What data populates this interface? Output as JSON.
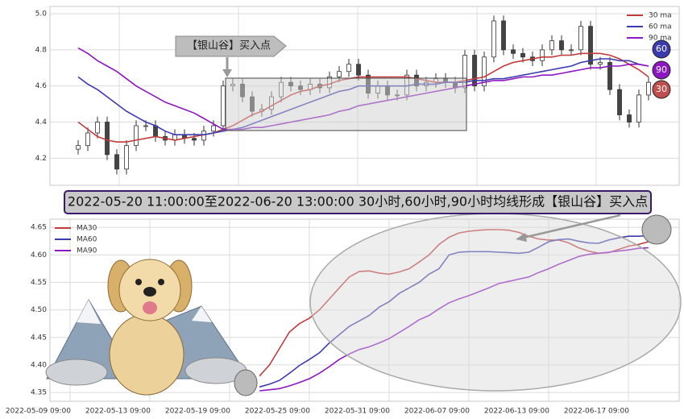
{
  "chart_data": [
    {
      "type": "candlestick",
      "annotations": [
        "【银山谷】买入点",
        "60",
        "90",
        "30"
      ],
      "open": [
        4.25,
        4.27,
        4.34,
        4.4,
        4.22,
        4.14,
        4.27,
        4.38,
        4.38,
        4.32,
        4.3,
        4.33,
        4.31,
        4.3,
        4.35,
        4.38,
        4.6,
        4.61,
        4.54,
        4.46,
        4.47,
        4.54,
        4.62,
        4.6,
        4.58,
        4.61,
        4.59,
        4.65,
        4.68,
        4.72,
        4.66,
        4.56,
        4.6,
        4.55,
        4.55,
        4.66,
        4.6,
        4.62,
        4.64,
        4.62,
        4.59,
        4.77,
        4.6,
        4.76,
        4.96,
        4.8,
        4.78,
        4.76,
        4.74,
        4.8,
        4.85,
        4.8,
        4.8,
        4.93,
        4.72,
        4.73,
        4.58,
        4.44,
        4.4,
        4.55
      ],
      "high": [
        4.3,
        4.37,
        4.43,
        4.43,
        4.25,
        4.3,
        4.41,
        4.41,
        4.41,
        4.35,
        4.36,
        4.36,
        4.34,
        4.38,
        4.41,
        4.63,
        4.64,
        4.64,
        4.57,
        4.5,
        4.57,
        4.65,
        4.65,
        4.63,
        4.64,
        4.64,
        4.68,
        4.71,
        4.75,
        4.75,
        4.69,
        4.63,
        4.63,
        4.58,
        4.69,
        4.69,
        4.65,
        4.67,
        4.67,
        4.65,
        4.8,
        4.8,
        4.79,
        4.99,
        4.99,
        4.83,
        4.81,
        4.79,
        4.83,
        4.88,
        4.88,
        4.83,
        4.96,
        4.96,
        4.76,
        4.76,
        4.61,
        4.47,
        4.58,
        4.65
      ],
      "low": [
        4.22,
        4.24,
        4.31,
        4.19,
        4.11,
        4.11,
        4.24,
        4.35,
        4.29,
        4.27,
        4.27,
        4.28,
        4.27,
        4.27,
        4.32,
        4.35,
        4.57,
        4.51,
        4.43,
        4.43,
        4.44,
        4.51,
        4.57,
        4.55,
        4.55,
        4.56,
        4.56,
        4.62,
        4.65,
        4.63,
        4.53,
        4.53,
        4.52,
        4.52,
        4.52,
        4.57,
        4.57,
        4.59,
        4.59,
        4.56,
        4.56,
        4.57,
        4.57,
        4.73,
        4.77,
        4.75,
        4.73,
        4.71,
        4.71,
        4.77,
        4.77,
        4.77,
        4.77,
        4.69,
        4.69,
        4.55,
        4.41,
        4.37,
        4.37,
        4.52
      ],
      "close": [
        4.27,
        4.34,
        4.4,
        4.22,
        4.14,
        4.27,
        4.38,
        4.38,
        4.32,
        4.3,
        4.33,
        4.31,
        4.3,
        4.35,
        4.38,
        4.6,
        4.61,
        4.54,
        4.46,
        4.47,
        4.54,
        4.62,
        4.6,
        4.58,
        4.61,
        4.59,
        4.65,
        4.68,
        4.72,
        4.66,
        4.56,
        4.6,
        4.55,
        4.55,
        4.66,
        4.6,
        4.62,
        4.64,
        4.62,
        4.59,
        4.77,
        4.6,
        4.76,
        4.96,
        4.8,
        4.78,
        4.76,
        4.74,
        4.8,
        4.85,
        4.8,
        4.8,
        4.93,
        4.72,
        4.73,
        4.58,
        4.44,
        4.4,
        4.55,
        4.62
      ],
      "series": [
        {
          "name": "30 ma",
          "color": "#c23b3b",
          "values": [
            4.4,
            4.36,
            4.32,
            4.3,
            4.29,
            4.29,
            4.3,
            4.31,
            4.32,
            4.31,
            4.3,
            4.31,
            4.32,
            4.33,
            4.34,
            4.36,
            4.38,
            4.41,
            4.44,
            4.46,
            4.49,
            4.52,
            4.55,
            4.57,
            4.58,
            4.6,
            4.61,
            4.63,
            4.64,
            4.65,
            4.65,
            4.65,
            4.65,
            4.65,
            4.65,
            4.64,
            4.63,
            4.62,
            4.62,
            4.62,
            4.63,
            4.64,
            4.65,
            4.68,
            4.71,
            4.73,
            4.74,
            4.75,
            4.76,
            4.76,
            4.77,
            4.77,
            4.78,
            4.78,
            4.78,
            4.77,
            4.75,
            4.72,
            4.69,
            4.65
          ]
        },
        {
          "name": "60 ma",
          "color": "#3b3bad",
          "values": [
            4.65,
            4.61,
            4.58,
            4.54,
            4.5,
            4.46,
            4.43,
            4.4,
            4.38,
            4.35,
            4.33,
            4.33,
            4.33,
            4.33,
            4.34,
            4.35,
            4.36,
            4.37,
            4.39,
            4.41,
            4.43,
            4.45,
            4.47,
            4.49,
            4.51,
            4.53,
            4.55,
            4.57,
            4.58,
            4.6,
            4.6,
            4.6,
            4.6,
            4.6,
            4.6,
            4.61,
            4.61,
            4.61,
            4.62,
            4.62,
            4.62,
            4.63,
            4.63,
            4.64,
            4.64,
            4.65,
            4.66,
            4.67,
            4.68,
            4.69,
            4.7,
            4.71,
            4.73,
            4.74,
            4.75,
            4.75,
            4.74,
            4.74,
            4.72,
            4.71
          ]
        },
        {
          "name": "90 ma",
          "color": "#8d17c2",
          "values": [
            4.81,
            4.78,
            4.74,
            4.71,
            4.68,
            4.64,
            4.6,
            4.57,
            4.54,
            4.51,
            4.49,
            4.47,
            4.45,
            4.42,
            4.39,
            4.36,
            4.36,
            4.36,
            4.37,
            4.37,
            4.38,
            4.39,
            4.4,
            4.41,
            4.42,
            4.43,
            4.44,
            4.46,
            4.47,
            4.49,
            4.5,
            4.51,
            4.52,
            4.53,
            4.54,
            4.55,
            4.56,
            4.57,
            4.58,
            4.59,
            4.6,
            4.61,
            4.62,
            4.63,
            4.63,
            4.64,
            4.65,
            4.65,
            4.66,
            4.66,
            4.67,
            4.68,
            4.69,
            4.7,
            4.7,
            4.71,
            4.71,
            4.72,
            4.72,
            4.71
          ]
        }
      ],
      "ylim": [
        4.05,
        5.04
      ],
      "yticks": [
        4.2,
        4.4,
        4.6,
        4.8,
        {
          "value": 5,
          "label": "5.0"
        }
      ],
      "grid": true,
      "legend": "upper right"
    },
    {
      "type": "line",
      "title": "2022-05-20 11:00:00至2022-06-20 13:00:00 30小时,60小时,90小时均线形成【银山谷】买入点",
      "categories": [
        "2022-05-09 09:00",
        null,
        null,
        null,
        null,
        null,
        null,
        null,
        "2022-05-13 09:00",
        null,
        null,
        null,
        null,
        null,
        null,
        null,
        "2022-05-19 09:00",
        null,
        null,
        null,
        null,
        null,
        null,
        null,
        "2022-05-25 09:00",
        null,
        null,
        null,
        null,
        null,
        null,
        null,
        "2022-05-31 09:00",
        null,
        null,
        null,
        null,
        null,
        null,
        null,
        "2022-06-07 09:00",
        null,
        null,
        null,
        null,
        null,
        null,
        null,
        "2022-06-13 09:00",
        null,
        null,
        null,
        null,
        null,
        null,
        null,
        "2022-06-17 09:00",
        null,
        null,
        null,
        null
      ],
      "series": [
        {
          "name": "MA30",
          "color": "#c23b3b",
          "values": [
            null,
            null,
            null,
            null,
            null,
            null,
            null,
            null,
            null,
            null,
            null,
            null,
            null,
            null,
            null,
            null,
            null,
            null,
            null,
            4.38,
            4.4,
            4.43,
            4.46,
            4.475,
            4.485,
            4.5,
            4.52,
            4.54,
            4.56,
            4.57,
            4.571,
            4.567,
            4.565,
            4.569,
            4.575,
            4.587,
            4.6,
            4.619,
            4.632,
            4.64,
            4.643,
            4.645,
            4.646,
            4.646,
            4.645,
            4.641,
            4.634,
            4.629,
            4.627,
            4.627,
            4.622,
            4.613,
            4.607,
            4.603,
            4.604,
            4.61,
            4.616,
            4.619,
            4.624,
            null,
            null
          ]
        },
        {
          "name": "MA60",
          "color": "#3b3bad",
          "values": [
            null,
            null,
            null,
            null,
            null,
            null,
            null,
            null,
            null,
            null,
            null,
            null,
            null,
            null,
            null,
            null,
            null,
            null,
            null,
            4.36,
            4.365,
            4.372,
            4.385,
            4.399,
            4.41,
            4.422,
            4.44,
            4.455,
            4.47,
            4.48,
            4.49,
            4.505,
            4.515,
            4.53,
            4.54,
            4.55,
            4.565,
            4.575,
            4.6,
            4.605,
            4.606,
            4.606,
            4.606,
            4.605,
            4.604,
            4.603,
            4.605,
            4.614,
            4.624,
            4.628,
            4.629,
            4.625,
            4.622,
            4.621,
            4.627,
            4.631,
            4.634,
            4.634,
            4.635,
            null,
            null
          ]
        },
        {
          "name": "MA90",
          "color": "#8d17c2",
          "values": [
            null,
            null,
            null,
            null,
            null,
            null,
            null,
            null,
            null,
            null,
            null,
            null,
            null,
            null,
            null,
            null,
            null,
            null,
            null,
            4.353,
            4.355,
            4.357,
            4.362,
            4.368,
            4.375,
            4.385,
            4.397,
            4.41,
            4.42,
            4.428,
            4.433,
            4.44,
            4.448,
            4.459,
            4.47,
            4.482,
            4.49,
            4.502,
            4.513,
            4.52,
            4.526,
            4.533,
            4.54,
            4.548,
            4.552,
            4.556,
            4.56,
            4.568,
            4.575,
            4.583,
            4.59,
            4.597,
            4.601,
            4.603,
            4.605,
            4.607,
            4.609,
            4.612,
            4.613,
            null,
            null
          ]
        }
      ],
      "ylim": [
        4.334,
        4.665
      ],
      "yticks": [
        4.35,
        {
          "value": 4.4,
          "label": "4.40"
        },
        4.45,
        {
          "value": 4.5,
          "label": "4.50"
        },
        4.55,
        {
          "value": 4.6,
          "label": "4.60"
        },
        4.65
      ],
      "grid": true,
      "legend": "upper left"
    }
  ]
}
